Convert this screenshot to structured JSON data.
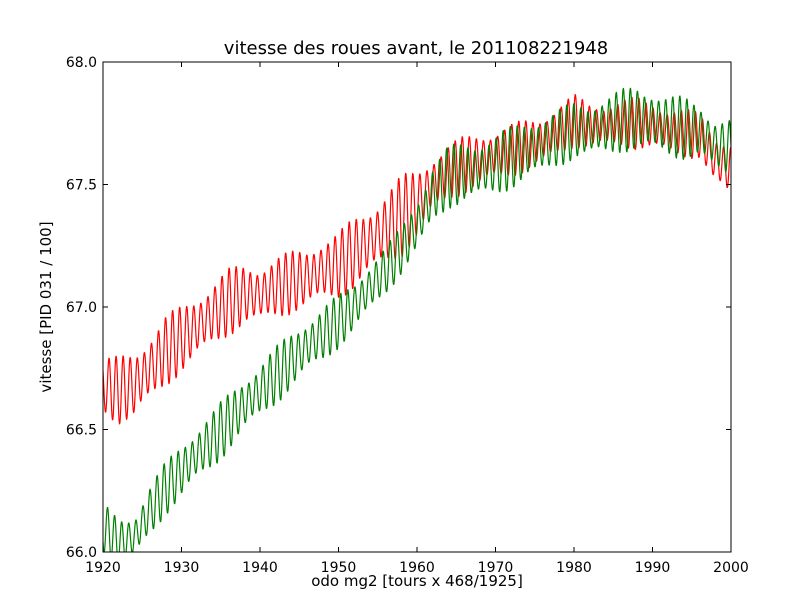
{
  "chart_data": {
    "type": "line",
    "title": "vitesse des roues avant, le 201108221948",
    "xlabel": "odo mg2 [tours x 468/1925]",
    "ylabel": "vitesse [PID 031 / 100]",
    "xlim": [
      1920,
      2000
    ],
    "ylim": [
      66.0,
      68.0
    ],
    "x_ticks": [
      1920,
      1930,
      1940,
      1950,
      1960,
      1970,
      1980,
      1990,
      2000
    ],
    "x_tick_labels": [
      "1920",
      "1930",
      "1940",
      "1950",
      "1960",
      "1970",
      "1980",
      "1990",
      "2000"
    ],
    "y_ticks": [
      66.0,
      66.5,
      67.0,
      67.5,
      68.0
    ],
    "y_tick_labels": [
      "66.0",
      "66.5",
      "67.0",
      "67.5",
      "68.0"
    ],
    "grid": false,
    "series": [
      {
        "color": "#ff0000",
        "oscillation_period": 0.9,
        "x": [
          1920,
          1922,
          1924,
          1926,
          1928,
          1930,
          1932,
          1934,
          1936,
          1938,
          1940,
          1942,
          1944,
          1946,
          1948,
          1950,
          1952,
          1954,
          1956,
          1958,
          1960,
          1962,
          1964,
          1966,
          1968,
          1970,
          1972,
          1974,
          1976,
          1978,
          1980,
          1982,
          1984,
          1986,
          1988,
          1990,
          1992,
          1994,
          1996,
          1998,
          2000
        ],
        "center": [
          66.68,
          66.66,
          66.68,
          66.75,
          66.82,
          66.87,
          66.92,
          66.97,
          67.02,
          67.05,
          67.05,
          67.08,
          67.1,
          67.12,
          67.15,
          67.17,
          67.22,
          67.27,
          67.32,
          67.37,
          67.42,
          67.5,
          67.55,
          67.58,
          67.6,
          67.62,
          67.64,
          67.66,
          67.68,
          67.72,
          67.76,
          67.74,
          67.74,
          67.75,
          67.75,
          67.74,
          67.72,
          67.71,
          67.7,
          67.6,
          67.56
        ],
        "amplitude": [
          0.12,
          0.14,
          0.15,
          0.15,
          0.15,
          0.14,
          0.14,
          0.14,
          0.14,
          0.13,
          0.13,
          0.13,
          0.13,
          0.13,
          0.14,
          0.14,
          0.15,
          0.15,
          0.16,
          0.17,
          0.15,
          0.13,
          0.12,
          0.12,
          0.12,
          0.11,
          0.11,
          0.11,
          0.11,
          0.11,
          0.11,
          0.1,
          0.1,
          0.1,
          0.11,
          0.11,
          0.1,
          0.1,
          0.1,
          0.12,
          0.12
        ]
      },
      {
        "color": "#008000",
        "oscillation_period": 0.9,
        "x": [
          1920,
          1922,
          1924,
          1926,
          1928,
          1930,
          1932,
          1934,
          1936,
          1938,
          1940,
          1942,
          1944,
          1946,
          1948,
          1950,
          1952,
          1954,
          1956,
          1958,
          1960,
          1962,
          1964,
          1966,
          1968,
          1970,
          1972,
          1974,
          1976,
          1978,
          1980,
          1982,
          1984,
          1986,
          1988,
          1990,
          1992,
          1994,
          1996,
          1998,
          2000
        ],
        "center": [
          66.1,
          66.04,
          66.06,
          66.17,
          66.26,
          66.33,
          66.4,
          66.46,
          66.53,
          66.6,
          66.66,
          66.72,
          66.78,
          66.84,
          66.89,
          66.94,
          67.0,
          67.08,
          67.15,
          67.23,
          67.33,
          67.46,
          67.53,
          67.55,
          67.56,
          67.58,
          67.61,
          67.64,
          67.66,
          67.69,
          67.72,
          67.72,
          67.74,
          67.76,
          67.77,
          67.76,
          67.74,
          67.73,
          67.72,
          67.66,
          67.65
        ],
        "amplitude": [
          0.1,
          0.1,
          0.1,
          0.11,
          0.11,
          0.12,
          0.12,
          0.12,
          0.12,
          0.12,
          0.12,
          0.12,
          0.12,
          0.12,
          0.12,
          0.11,
          0.11,
          0.11,
          0.1,
          0.1,
          0.12,
          0.13,
          0.13,
          0.13,
          0.13,
          0.13,
          0.13,
          0.13,
          0.13,
          0.12,
          0.12,
          0.12,
          0.13,
          0.13,
          0.14,
          0.14,
          0.13,
          0.13,
          0.12,
          0.12,
          0.12
        ]
      }
    ]
  }
}
